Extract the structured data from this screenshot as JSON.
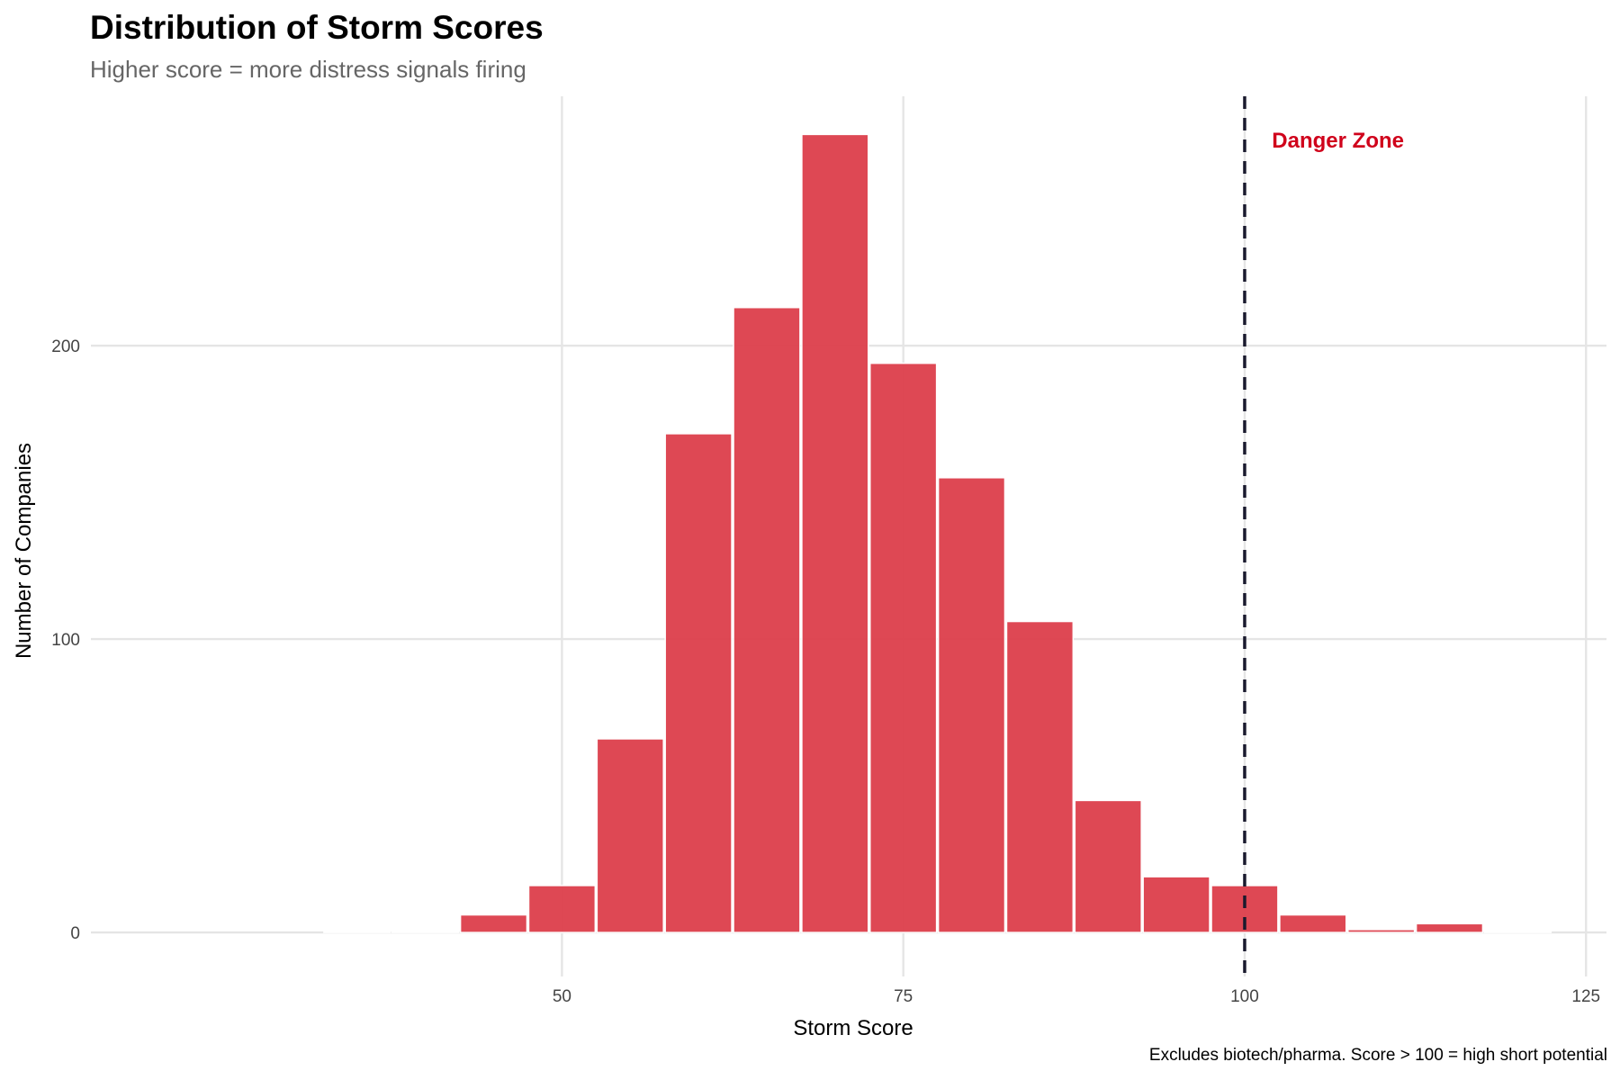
{
  "chart_data": {
    "type": "bar",
    "title": "Distribution of Storm Scores",
    "subtitle": "Higher score = more distress signals firing",
    "caption": "Excludes biotech/pharma. Score > 100 = high short potential",
    "xlabel": "Storm Score",
    "ylabel": "Number of Companies",
    "bin_width": 5,
    "bin_centers": [
      35,
      40,
      45,
      50,
      55,
      60,
      65,
      70,
      75,
      80,
      85,
      90,
      95,
      100,
      105,
      110,
      115,
      120
    ],
    "values": [
      0,
      0,
      6,
      16,
      66,
      170,
      213,
      272,
      194,
      155,
      106,
      45,
      19,
      16,
      6,
      1,
      3,
      0
    ],
    "xlim": [
      15.5,
      126.5
    ],
    "ylim": [
      -15,
      285
    ],
    "x_ticks": [
      50,
      75,
      100,
      125
    ],
    "y_ticks": [
      0,
      100,
      200
    ],
    "grid": true,
    "bar_color": "#dc3e4b",
    "reference_line": {
      "x": 100,
      "style": "dashed",
      "color": "#1a1a2e"
    },
    "annotation": {
      "text": "Danger Zone",
      "x": 102,
      "y": 270,
      "color": "#d0021b"
    }
  }
}
